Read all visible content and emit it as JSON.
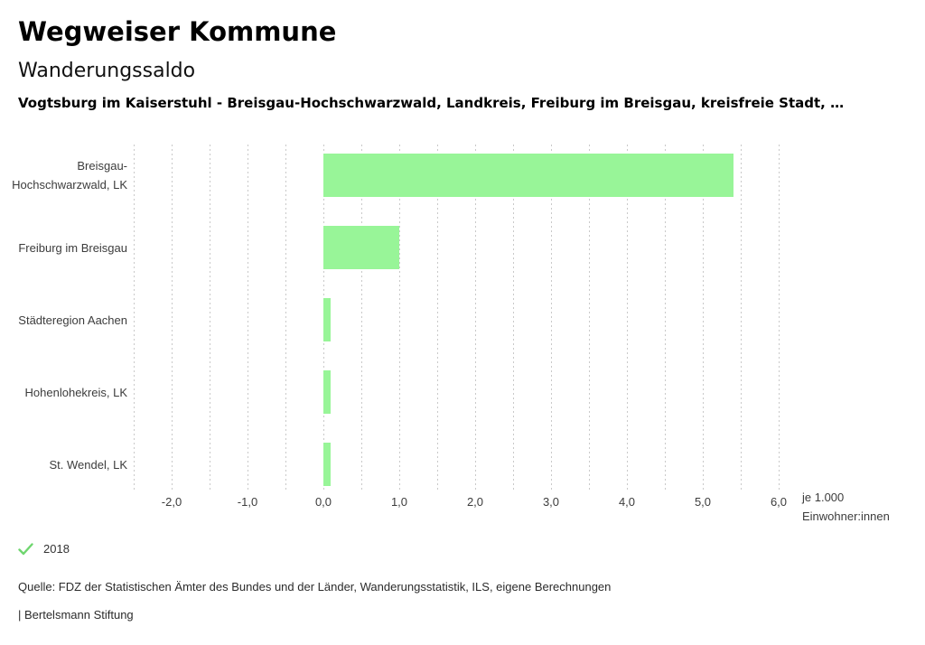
{
  "header": {
    "title": "Wegweiser Kommune",
    "subtitle": "Wanderungssaldo",
    "context_line": "Vogtsburg im Kaiserstuhl - Breisgau-Hochschwarzwald, Landkreis, Freiburg im Breisgau, kreisfreie Stadt, …"
  },
  "chart_data": {
    "type": "bar",
    "orientation": "horizontal",
    "title": "Wanderungssaldo",
    "categories": [
      "Breisgau-Hochschwarzwald, LK",
      "Freiburg im Breisgau",
      "Städteregion Aachen",
      "Hohenlohekreis, LK",
      "St. Wendel, LK"
    ],
    "series": [
      {
        "name": "2018",
        "values": [
          5.4,
          1.0,
          0.1,
          0.1,
          0.1
        ]
      }
    ],
    "xlim": [
      -2.5,
      6.0
    ],
    "grid_step": 0.5,
    "grid": "vertical-dashed",
    "x_ticks": [
      -2,
      -1,
      0,
      1,
      2,
      3,
      4,
      5,
      6
    ],
    "x_tick_labels": [
      "-2,0",
      "-1,0",
      "0,0",
      "1,0",
      "2,0",
      "3,0",
      "4,0",
      "5,0",
      "6,0"
    ],
    "unit_label_lines": [
      "je 1.000",
      "Einwohner:innen"
    ],
    "bar_color": "#98f598",
    "grid_color": "#c9c9c9"
  },
  "legend": {
    "check_icon": "check-icon",
    "check_color": "#6fd66f",
    "year": "2018"
  },
  "footer": {
    "source": "Quelle: FDZ der Statistischen Ämter des Bundes und der Länder, Wanderungsstatistik, ILS, eigene Berechnungen",
    "attribution": "| Bertelsmann Stiftung"
  }
}
